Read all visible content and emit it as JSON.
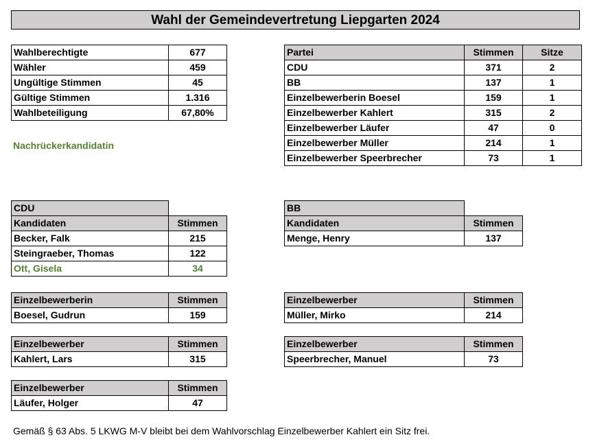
{
  "title": "Wahl der Gemeindevertretung Liepgarten 2024",
  "stats": [
    {
      "label": "Wahlberechtigte",
      "value": "677"
    },
    {
      "label": "Wähler",
      "value": "459"
    },
    {
      "label": "Ungültige Stimmen",
      "value": "45"
    },
    {
      "label": "Gültige Stimmen",
      "value": "1.316"
    },
    {
      "label": "Wahlbeteiligung",
      "value": "67,80%"
    }
  ],
  "legend": "Nachrückerkandidatin",
  "parties": {
    "headers": [
      "Partei",
      "Stimmen",
      "Sitze"
    ],
    "rows": [
      [
        "CDU",
        "371",
        "2"
      ],
      [
        "BB",
        "137",
        "1"
      ],
      [
        "Einzelbewerberin Boesel",
        "159",
        "1"
      ],
      [
        "Einzelbewerber Kahlert",
        "315",
        "2"
      ],
      [
        "Einzelbewerber Läufer",
        "47",
        "0"
      ],
      [
        "Einzelbewerber Müller",
        "214",
        "1"
      ],
      [
        "Einzelbewerber Speerbrecher",
        "73",
        "1"
      ]
    ]
  },
  "cdu": {
    "name": "CDU",
    "col1": "Kandidaten",
    "col2": "Stimmen",
    "rows": [
      [
        "Becker, Falk",
        "215"
      ],
      [
        "Steingraeber, Thomas",
        "122"
      ],
      [
        "Ott, Gisela",
        "34"
      ]
    ]
  },
  "bb": {
    "name": "BB",
    "col1": "Kandidaten",
    "col2": "Stimmen",
    "rows": [
      [
        "Menge, Henry",
        "137"
      ]
    ]
  },
  "boesel": {
    "col1": "Einzelbewerberin",
    "col2": "Stimmen",
    "name": "Boesel, Gudrun",
    "votes": "159"
  },
  "mueller": {
    "col1": "Einzelbewerber",
    "col2": "Stimmen",
    "name": "Müller, Mirko",
    "votes": "214"
  },
  "kahlert": {
    "col1": "Einzelbewerber",
    "col2": "Stimmen",
    "name": "Kahlert, Lars",
    "votes": "315"
  },
  "speerbrecher": {
    "col1": "Einzelbewerber",
    "col2": "Stimmen",
    "name": "Speerbrecher, Manuel",
    "votes": "73"
  },
  "laeufer": {
    "col1": "Einzelbewerber",
    "col2": "Stimmen",
    "name": "Läufer, Holger",
    "votes": "47"
  },
  "footer": "Gemäß § 63 Abs. 5 LKWG M-V bleibt bei dem Wahlvorschlag Einzelbewerber Kahlert ein Sitz frei."
}
